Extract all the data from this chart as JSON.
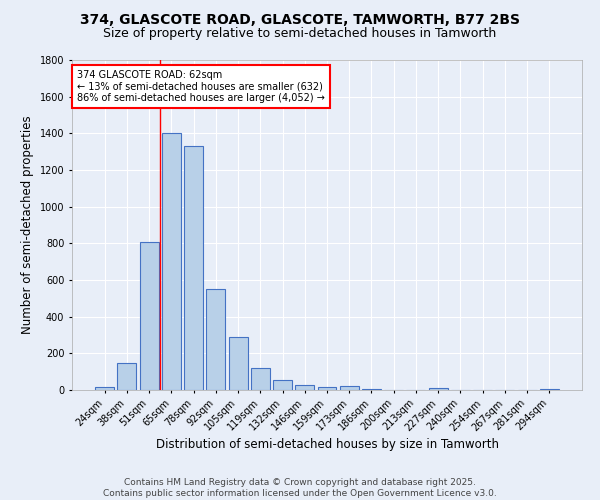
{
  "title": "374, GLASCOTE ROAD, GLASCOTE, TAMWORTH, B77 2BS",
  "subtitle": "Size of property relative to semi-detached houses in Tamworth",
  "xlabel": "Distribution of semi-detached houses by size in Tamworth",
  "ylabel": "Number of semi-detached properties",
  "categories": [
    "24sqm",
    "38sqm",
    "51sqm",
    "65sqm",
    "78sqm",
    "92sqm",
    "105sqm",
    "119sqm",
    "132sqm",
    "146sqm",
    "159sqm",
    "173sqm",
    "186sqm",
    "200sqm",
    "213sqm",
    "227sqm",
    "240sqm",
    "254sqm",
    "267sqm",
    "281sqm",
    "294sqm"
  ],
  "values": [
    15,
    150,
    810,
    1400,
    1330,
    550,
    290,
    120,
    55,
    30,
    15,
    20,
    5,
    0,
    0,
    10,
    0,
    0,
    0,
    0,
    8
  ],
  "bar_color": "#b8d0e8",
  "bar_edge_color": "#4472c4",
  "background_color": "#e8eef8",
  "grid_color": "#ffffff",
  "vline_color": "red",
  "vline_x_index": 2.5,
  "annotation_title": "374 GLASCOTE ROAD: 62sqm",
  "annotation_line1": "← 13% of semi-detached houses are smaller (632)",
  "annotation_line2": "86% of semi-detached houses are larger (4,052) →",
  "annotation_box_color": "white",
  "annotation_box_edge": "red",
  "ylim": [
    0,
    1800
  ],
  "yticks": [
    0,
    200,
    400,
    600,
    800,
    1000,
    1200,
    1400,
    1600,
    1800
  ],
  "footer_line1": "Contains HM Land Registry data © Crown copyright and database right 2025.",
  "footer_line2": "Contains public sector information licensed under the Open Government Licence v3.0.",
  "title_fontsize": 10,
  "subtitle_fontsize": 9,
  "axis_label_fontsize": 8.5,
  "tick_fontsize": 7,
  "annotation_fontsize": 7,
  "footer_fontsize": 6.5
}
